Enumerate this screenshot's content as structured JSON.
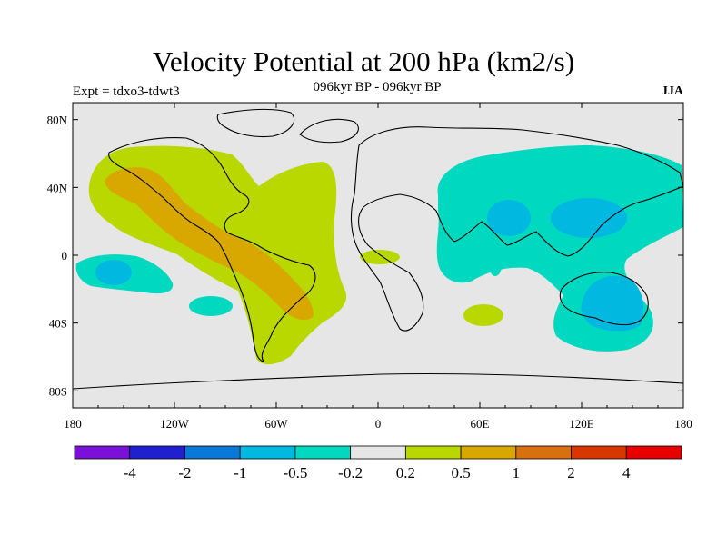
{
  "title": "Velocity Potential at 200 hPa (km2/s)",
  "subtitle_left": "Expt = tdxo3-tdwt3",
  "subtitle_center": "096kyr BP - 096kyr BP",
  "subtitle_right": "JJA",
  "colors": {
    "background_land_ocean": "#e6e6e6",
    "coastline": "#000000",
    "contour_levels": [
      "#7b10d8",
      "#2020d0",
      "#0a78d8",
      "#00b8e0",
      "#00d8c0",
      "#e6e6e6",
      "#b8d800",
      "#d8a800",
      "#d87010",
      "#d83800",
      "#e80000"
    ]
  },
  "colorbar": {
    "labels": [
      "-4",
      "-2",
      "-1",
      "-0.5",
      "-0.2",
      "0.2",
      "0.5",
      "1",
      "2",
      "4"
    ]
  },
  "axes": {
    "x_ticks": [
      "180",
      "120W",
      "60W",
      "0",
      "60E",
      "120E",
      "180"
    ],
    "y_ticks": [
      "80N",
      "40N",
      "0",
      "40S",
      "80S"
    ],
    "lon_range": [
      -180,
      180
    ],
    "lat_range": [
      -90,
      90
    ]
  },
  "chart_data": {
    "type": "heatmap",
    "title": "Velocity Potential at 200 hPa (km2/s)",
    "xlabel": "",
    "ylabel": "",
    "levels": [
      -4,
      -2,
      -1,
      -0.5,
      -0.2,
      0.2,
      0.5,
      1,
      2,
      4
    ],
    "regions": [
      {
        "sign": "positive",
        "level": "0.2 to 0.5",
        "area": "Pacific–Americas–Atlantic, 40S–60N"
      },
      {
        "sign": "positive",
        "level": "0.5 to 1",
        "area": "Eastern Pacific, Central and South America"
      },
      {
        "sign": "negative",
        "level": "-0.5 to -0.2",
        "area": "Asia, Indian Ocean, Maritime Continent, Australia"
      },
      {
        "sign": "negative",
        "level": "-1 to -0.5",
        "area": "India, South China Sea, Australia"
      },
      {
        "sign": "negative",
        "level": "-0.5 to -0.2",
        "area": "Southwest Pacific near dateline"
      }
    ]
  }
}
